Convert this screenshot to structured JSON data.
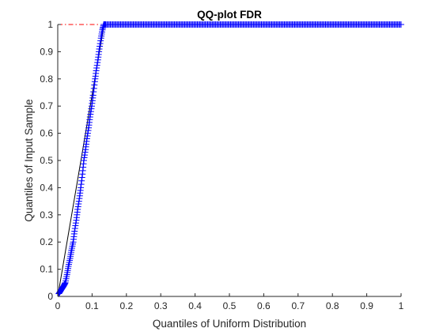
{
  "chart_data": {
    "type": "scatter",
    "title": "QQ-plot FDR",
    "xlabel": "Quantiles of Uniform Distribution",
    "ylabel": "Quantiles of Input Sample",
    "xlim": [
      0,
      1
    ],
    "ylim": [
      0,
      1
    ],
    "x_ticks": [
      "0",
      "0.1",
      "0.2",
      "0.3",
      "0.4",
      "0.5",
      "0.6",
      "0.7",
      "0.8",
      "0.9",
      "1"
    ],
    "y_ticks": [
      "0",
      "0.1",
      "0.2",
      "0.3",
      "0.4",
      "0.5",
      "0.6",
      "0.7",
      "0.8",
      "0.9",
      "1"
    ],
    "grid": false,
    "colors": {
      "marker": "#0000ff",
      "fit_line_solid": "#000000",
      "fit_line_dashed": "#ff0000",
      "axis": "#262626"
    },
    "series": [
      {
        "marker": "+",
        "x": [
          0.003,
          0.008,
          0.013,
          0.018,
          0.022,
          0.027,
          0.031,
          0.036,
          0.04,
          0.045,
          0.049,
          0.054,
          0.058,
          0.063,
          0.067,
          0.072,
          0.076,
          0.081,
          0.085,
          0.09,
          0.094,
          0.099,
          0.103,
          0.108,
          0.112,
          0.117,
          0.121,
          0.126,
          0.13,
          0.134,
          0.14,
          0.16,
          0.18,
          0.2,
          0.22,
          0.24,
          0.26,
          0.28,
          0.3,
          0.32,
          0.34,
          0.36,
          0.38,
          0.4,
          0.42,
          0.44,
          0.46,
          0.48,
          0.5,
          0.52,
          0.54,
          0.56,
          0.58,
          0.6,
          0.62,
          0.64,
          0.66,
          0.68,
          0.7,
          0.72,
          0.74,
          0.76,
          0.78,
          0.8,
          0.82,
          0.84,
          0.86,
          0.88,
          0.9,
          0.92,
          0.94,
          0.96,
          0.98,
          1.0
        ],
        "y": [
          0.01,
          0.02,
          0.03,
          0.04,
          0.05,
          0.08,
          0.11,
          0.14,
          0.17,
          0.2,
          0.24,
          0.28,
          0.32,
          0.36,
          0.4,
          0.45,
          0.5,
          0.54,
          0.58,
          0.62,
          0.66,
          0.7,
          0.74,
          0.79,
          0.83,
          0.87,
          0.91,
          0.95,
          0.98,
          1.0,
          1.0,
          1.0,
          1.0,
          1.0,
          1.0,
          1.0,
          1.0,
          1.0,
          1.0,
          1.0,
          1.0,
          1.0,
          1.0,
          1.0,
          1.0,
          1.0,
          1.0,
          1.0,
          1.0,
          1.0,
          1.0,
          1.0,
          1.0,
          1.0,
          1.0,
          1.0,
          1.0,
          1.0,
          1.0,
          1.0,
          1.0,
          1.0,
          1.0,
          1.0,
          1.0,
          1.0,
          1.0,
          1.0,
          1.0,
          1.0,
          1.0,
          1.0,
          1.0,
          1.0
        ]
      }
    ],
    "reference_line": {
      "solid_segment": [
        [
          0.0,
          0.0
        ],
        [
          0.135,
          1.0
        ]
      ],
      "dashed_segment": [
        [
          0.0,
          1.0
        ],
        [
          0.135,
          1.0
        ]
      ]
    }
  }
}
